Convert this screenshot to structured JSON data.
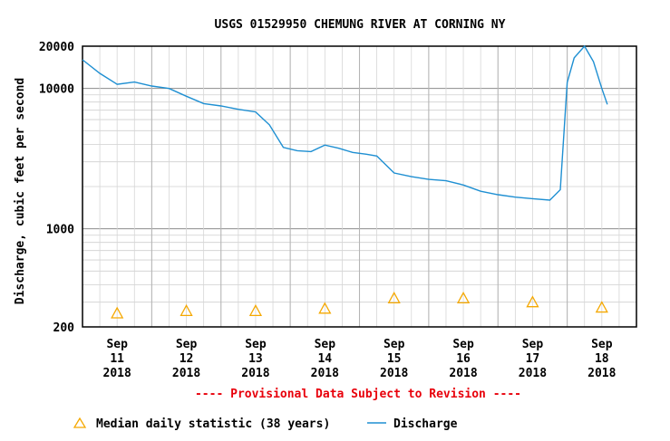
{
  "chart_data": {
    "type": "line",
    "title": "USGS 01529950 CHEMUNG RIVER AT CORNING NY",
    "ylabel": "Discharge, cubic feet per second",
    "xlabel": "",
    "yscale": "log",
    "ylim": [
      200,
      20000
    ],
    "y_ticks": [
      {
        "value": 20000,
        "label": "20000"
      },
      {
        "value": 10000,
        "label": "10000"
      },
      {
        "value": 1000,
        "label": "1000"
      },
      {
        "value": 200,
        "label": "200"
      }
    ],
    "x_ticks": [
      {
        "day": 11,
        "month": "Sep",
        "date": "11",
        "year": "2018"
      },
      {
        "day": 12,
        "month": "Sep",
        "date": "12",
        "year": "2018"
      },
      {
        "day": 13,
        "month": "Sep",
        "date": "13",
        "year": "2018"
      },
      {
        "day": 14,
        "month": "Sep",
        "date": "14",
        "year": "2018"
      },
      {
        "day": 15,
        "month": "Sep",
        "date": "15",
        "year": "2018"
      },
      {
        "day": 16,
        "month": "Sep",
        "date": "16",
        "year": "2018"
      },
      {
        "day": 17,
        "month": "Sep",
        "date": "17",
        "year": "2018"
      },
      {
        "day": 18,
        "month": "Sep",
        "date": "18",
        "year": "2018"
      }
    ],
    "xlim": [
      10.5,
      18.5
    ],
    "grid": true,
    "legend_position": "bottom",
    "series": [
      {
        "name": "Discharge",
        "color": "#1e8fd2",
        "points": [
          [
            10.5,
            16000
          ],
          [
            10.75,
            12800
          ],
          [
            11.0,
            10700
          ],
          [
            11.25,
            11100
          ],
          [
            11.5,
            10400
          ],
          [
            11.75,
            10000
          ],
          [
            12.0,
            8800
          ],
          [
            12.25,
            7800
          ],
          [
            12.5,
            7500
          ],
          [
            12.75,
            7100
          ],
          [
            13.0,
            6800
          ],
          [
            13.2,
            5500
          ],
          [
            13.4,
            3800
          ],
          [
            13.6,
            3600
          ],
          [
            13.8,
            3550
          ],
          [
            14.0,
            3950
          ],
          [
            14.2,
            3750
          ],
          [
            14.4,
            3500
          ],
          [
            14.6,
            3400
          ],
          [
            14.75,
            3300
          ],
          [
            15.0,
            2500
          ],
          [
            15.25,
            2350
          ],
          [
            15.5,
            2250
          ],
          [
            15.75,
            2200
          ],
          [
            16.0,
            2050
          ],
          [
            16.25,
            1850
          ],
          [
            16.5,
            1750
          ],
          [
            16.75,
            1680
          ],
          [
            17.0,
            1640
          ],
          [
            17.25,
            1600
          ],
          [
            17.4,
            1900
          ],
          [
            17.5,
            11000
          ],
          [
            17.6,
            16500
          ],
          [
            17.75,
            20000
          ],
          [
            17.88,
            15500
          ],
          [
            18.0,
            10000
          ],
          [
            18.08,
            7700
          ]
        ]
      },
      {
        "name": "Median daily statistic (38 years)",
        "marker": "triangle",
        "color": "#f5a800",
        "points": [
          [
            11,
            250
          ],
          [
            12,
            260
          ],
          [
            13,
            260
          ],
          [
            14,
            270
          ],
          [
            15,
            320
          ],
          [
            16,
            320
          ],
          [
            17,
            300
          ],
          [
            18,
            275
          ]
        ]
      }
    ],
    "annotations": [
      "---- Provisional Data Subject to Revision ----"
    ]
  }
}
